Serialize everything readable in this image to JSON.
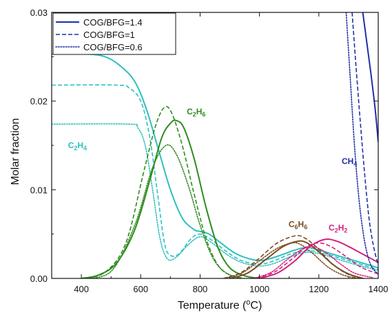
{
  "chart_data": {
    "type": "line",
    "xlabel": {
      "base": "Temperature (",
      "sup": "o",
      "tail": "C)"
    },
    "ylabel": "Molar fraction",
    "xlim": [
      300,
      1400
    ],
    "ylim": [
      0,
      0.03
    ],
    "xticks": [
      400,
      600,
      800,
      1000,
      1200,
      1400
    ],
    "yticks": [
      0.0,
      0.01,
      0.02,
      0.03
    ],
    "xtick_labels": [
      "400",
      "600",
      "800",
      "1000",
      "1200",
      "1400"
    ],
    "ytick_labels": [
      "0.00",
      "0.01",
      "0.02",
      "0.03"
    ],
    "grid": false,
    "legend": {
      "position": "top-left",
      "entries": [
        {
          "label": "COG/BFG=1.4",
          "dash": "solid"
        },
        {
          "label": "COG/BFG=1",
          "dash": "dashed"
        },
        {
          "label": "COG/BFG=0.6",
          "dash": "dotted"
        }
      ]
    },
    "annotations": [
      {
        "species": "C2H4",
        "parts": [
          {
            "t": "C"
          },
          {
            "t": "2",
            "sub": true
          },
          {
            "t": "H"
          },
          {
            "t": "4",
            "sub": true
          }
        ],
        "x": 355,
        "y": 0.0147,
        "color": "#2dbfbf"
      },
      {
        "species": "C2H6",
        "parts": [
          {
            "t": "C"
          },
          {
            "t": "2",
            "sub": true
          },
          {
            "t": "H"
          },
          {
            "t": "6",
            "sub": true
          }
        ],
        "x": 755,
        "y": 0.0185,
        "color": "#2e8b1e"
      },
      {
        "species": "C6H6",
        "parts": [
          {
            "t": "C"
          },
          {
            "t": "6",
            "sub": true
          },
          {
            "t": "H"
          },
          {
            "t": "6",
            "sub": true
          }
        ],
        "x": 1098,
        "y": 0.0058,
        "color": "#7a4b22"
      },
      {
        "species": "C2H2",
        "parts": [
          {
            "t": "C"
          },
          {
            "t": "2",
            "sub": true
          },
          {
            "t": "H"
          },
          {
            "t": "2",
            "sub": true
          }
        ],
        "x": 1233,
        "y": 0.0054,
        "color": "#d41f7c"
      },
      {
        "species": "CH4",
        "parts": [
          {
            "t": "CH"
          },
          {
            "t": "4",
            "sub": true
          }
        ],
        "x": 1277,
        "y": 0.0129,
        "color": "#1f2fa5"
      }
    ],
    "series": [
      {
        "species": "C2H4",
        "ratio": "1.4",
        "dash": "solid",
        "color": "#2dbfbf",
        "points": [
          [
            300,
            0.0253
          ],
          [
            420,
            0.0253
          ],
          [
            480,
            0.025
          ],
          [
            530,
            0.024
          ],
          [
            580,
            0.0222
          ],
          [
            620,
            0.019
          ],
          [
            660,
            0.0145
          ],
          [
            700,
            0.01
          ],
          [
            740,
            0.0068
          ],
          [
            780,
            0.0055
          ],
          [
            800,
            0.0053
          ],
          [
            830,
            0.005
          ],
          [
            870,
            0.004
          ],
          [
            920,
            0.0028
          ],
          [
            980,
            0.0021
          ],
          [
            1020,
            0.0021
          ],
          [
            1070,
            0.0026
          ],
          [
            1120,
            0.0032
          ],
          [
            1160,
            0.0035
          ],
          [
            1200,
            0.0032
          ],
          [
            1260,
            0.0026
          ],
          [
            1320,
            0.002
          ],
          [
            1400,
            0.0012
          ]
        ]
      },
      {
        "species": "C2H4",
        "ratio": "1",
        "dash": "dashed",
        "color": "#2dbfbf",
        "points": [
          [
            300,
            0.0218
          ],
          [
            520,
            0.0218
          ],
          [
            560,
            0.0215
          ],
          [
            600,
            0.02
          ],
          [
            630,
            0.016
          ],
          [
            655,
            0.01
          ],
          [
            680,
            0.004
          ],
          [
            700,
            0.0026
          ],
          [
            730,
            0.0028
          ],
          [
            770,
            0.0045
          ],
          [
            800,
            0.005
          ],
          [
            840,
            0.0043
          ],
          [
            890,
            0.003
          ],
          [
            940,
            0.002
          ],
          [
            1000,
            0.0016
          ],
          [
            1050,
            0.002
          ],
          [
            1100,
            0.0027
          ],
          [
            1150,
            0.0031
          ],
          [
            1200,
            0.003
          ],
          [
            1260,
            0.0024
          ],
          [
            1330,
            0.0017
          ],
          [
            1400,
            0.001
          ]
        ]
      },
      {
        "species": "C2H4",
        "ratio": "0.6",
        "dash": "dotted",
        "color": "#2dbfbf",
        "points": [
          [
            300,
            0.0174
          ],
          [
            560,
            0.0174
          ],
          [
            590,
            0.017
          ],
          [
            615,
            0.015
          ],
          [
            640,
            0.01
          ],
          [
            665,
            0.0045
          ],
          [
            690,
            0.0022
          ],
          [
            720,
            0.0024
          ],
          [
            760,
            0.0038
          ],
          [
            800,
            0.0047
          ],
          [
            840,
            0.004
          ],
          [
            890,
            0.0027
          ],
          [
            940,
            0.0018
          ],
          [
            1000,
            0.0014
          ],
          [
            1050,
            0.0017
          ],
          [
            1100,
            0.0024
          ],
          [
            1150,
            0.0029
          ],
          [
            1200,
            0.0028
          ],
          [
            1260,
            0.0022
          ],
          [
            1330,
            0.0015
          ],
          [
            1400,
            0.0009
          ]
        ]
      },
      {
        "species": "C2H6",
        "ratio": "1.4",
        "dash": "solid",
        "color": "#2e8b1e",
        "points": [
          [
            400,
            0.0
          ],
          [
            460,
            0.0004
          ],
          [
            520,
            0.0018
          ],
          [
            580,
            0.0055
          ],
          [
            630,
            0.011
          ],
          [
            670,
            0.0158
          ],
          [
            700,
            0.0175
          ],
          [
            720,
            0.0178
          ],
          [
            745,
            0.017
          ],
          [
            780,
            0.0135
          ],
          [
            820,
            0.008
          ],
          [
            860,
            0.0035
          ],
          [
            900,
            0.0012
          ],
          [
            950,
            0.0003
          ],
          [
            1000,
            0.0
          ]
        ]
      },
      {
        "species": "C2H6",
        "ratio": "1",
        "dash": "dashed",
        "color": "#2e8b1e",
        "points": [
          [
            400,
            0.0
          ],
          [
            480,
            0.0007
          ],
          [
            550,
            0.004
          ],
          [
            610,
            0.012
          ],
          [
            650,
            0.0172
          ],
          [
            680,
            0.0193
          ],
          [
            705,
            0.0186
          ],
          [
            740,
            0.015
          ],
          [
            780,
            0.0095
          ],
          [
            820,
            0.0045
          ],
          [
            860,
            0.0015
          ],
          [
            900,
            0.0004
          ],
          [
            950,
            0.0
          ]
        ]
      },
      {
        "species": "C2H6",
        "ratio": "0.6",
        "dash": "dotted",
        "color": "#2e8b1e",
        "points": [
          [
            400,
            0.0
          ],
          [
            500,
            0.0008
          ],
          [
            580,
            0.006
          ],
          [
            640,
            0.0125
          ],
          [
            685,
            0.015
          ],
          [
            720,
            0.014
          ],
          [
            760,
            0.0105
          ],
          [
            800,
            0.006
          ],
          [
            840,
            0.0025
          ],
          [
            880,
            0.0008
          ],
          [
            930,
            0.0
          ]
        ]
      },
      {
        "species": "C6H6",
        "ratio": "1.4",
        "dash": "solid",
        "color": "#7a4b22",
        "points": [
          [
            900,
            0.0
          ],
          [
            960,
            0.0006
          ],
          [
            1020,
            0.0021
          ],
          [
            1080,
            0.0036
          ],
          [
            1130,
            0.0042
          ],
          [
            1160,
            0.004
          ],
          [
            1200,
            0.003
          ],
          [
            1250,
            0.0015
          ],
          [
            1300,
            0.0005
          ],
          [
            1350,
            0.0
          ]
        ]
      },
      {
        "species": "C6H6",
        "ratio": "1",
        "dash": "dashed",
        "color": "#7a4b22",
        "points": [
          [
            880,
            0.0
          ],
          [
            940,
            0.0007
          ],
          [
            1000,
            0.0023
          ],
          [
            1060,
            0.004
          ],
          [
            1120,
            0.0048
          ],
          [
            1150,
            0.0046
          ],
          [
            1190,
            0.0036
          ],
          [
            1240,
            0.0018
          ],
          [
            1290,
            0.0006
          ],
          [
            1340,
            0.0
          ]
        ]
      },
      {
        "species": "C6H6",
        "ratio": "0.6",
        "dash": "dotted",
        "color": "#7a4b22",
        "points": [
          [
            880,
            0.0
          ],
          [
            940,
            0.0006
          ],
          [
            1000,
            0.002
          ],
          [
            1060,
            0.0034
          ],
          [
            1110,
            0.004
          ],
          [
            1140,
            0.0038
          ],
          [
            1180,
            0.0028
          ],
          [
            1230,
            0.0013
          ],
          [
            1280,
            0.0004
          ],
          [
            1330,
            0.0
          ]
        ]
      },
      {
        "species": "C2H2",
        "ratio": "1.4",
        "dash": "solid",
        "color": "#d41f7c",
        "points": [
          [
            1000,
            0.0
          ],
          [
            1060,
            0.0006
          ],
          [
            1120,
            0.002
          ],
          [
            1170,
            0.0036
          ],
          [
            1220,
            0.0044
          ],
          [
            1260,
            0.0042
          ],
          [
            1300,
            0.0036
          ],
          [
            1350,
            0.0027
          ],
          [
            1400,
            0.0018
          ]
        ]
      },
      {
        "species": "C2H2",
        "ratio": "1",
        "dash": "dashed",
        "color": "#d41f7c",
        "points": [
          [
            990,
            0.0
          ],
          [
            1050,
            0.0007
          ],
          [
            1110,
            0.0022
          ],
          [
            1160,
            0.0036
          ],
          [
            1200,
            0.004
          ],
          [
            1240,
            0.0036
          ],
          [
            1290,
            0.0025
          ],
          [
            1340,
            0.0013
          ],
          [
            1400,
            0.0005
          ]
        ]
      },
      {
        "species": "C2H2",
        "ratio": "0.6",
        "dash": "dotted",
        "color": "#d41f7c",
        "points": [
          [
            980,
            0.0
          ],
          [
            1040,
            0.0007
          ],
          [
            1100,
            0.0023
          ],
          [
            1150,
            0.0034
          ],
          [
            1180,
            0.0036
          ],
          [
            1220,
            0.003
          ],
          [
            1270,
            0.0017
          ],
          [
            1320,
            0.0006
          ],
          [
            1380,
            0.0001
          ]
        ]
      },
      {
        "species": "CH4",
        "ratio": "1.4",
        "dash": "solid",
        "color": "#1f2fa5",
        "points": [
          [
            1348,
            0.03
          ],
          [
            1360,
            0.027
          ],
          [
            1375,
            0.0232
          ],
          [
            1390,
            0.019
          ],
          [
            1400,
            0.0154
          ]
        ]
      },
      {
        "species": "CH4",
        "ratio": "1",
        "dash": "dashed",
        "color": "#1f2fa5",
        "points": [
          [
            1312,
            0.03
          ],
          [
            1325,
            0.024
          ],
          [
            1340,
            0.0175
          ],
          [
            1355,
            0.0115
          ],
          [
            1370,
            0.0065
          ],
          [
            1385,
            0.0035
          ],
          [
            1400,
            0.0015
          ]
        ]
      },
      {
        "species": "CH4",
        "ratio": "0.6",
        "dash": "dotted",
        "color": "#1f2fa5",
        "points": [
          [
            1292,
            0.03
          ],
          [
            1305,
            0.023
          ],
          [
            1320,
            0.015
          ],
          [
            1335,
            0.009
          ],
          [
            1350,
            0.005
          ],
          [
            1365,
            0.0025
          ],
          [
            1380,
            0.0012
          ],
          [
            1400,
            0.0005
          ]
        ]
      }
    ]
  }
}
